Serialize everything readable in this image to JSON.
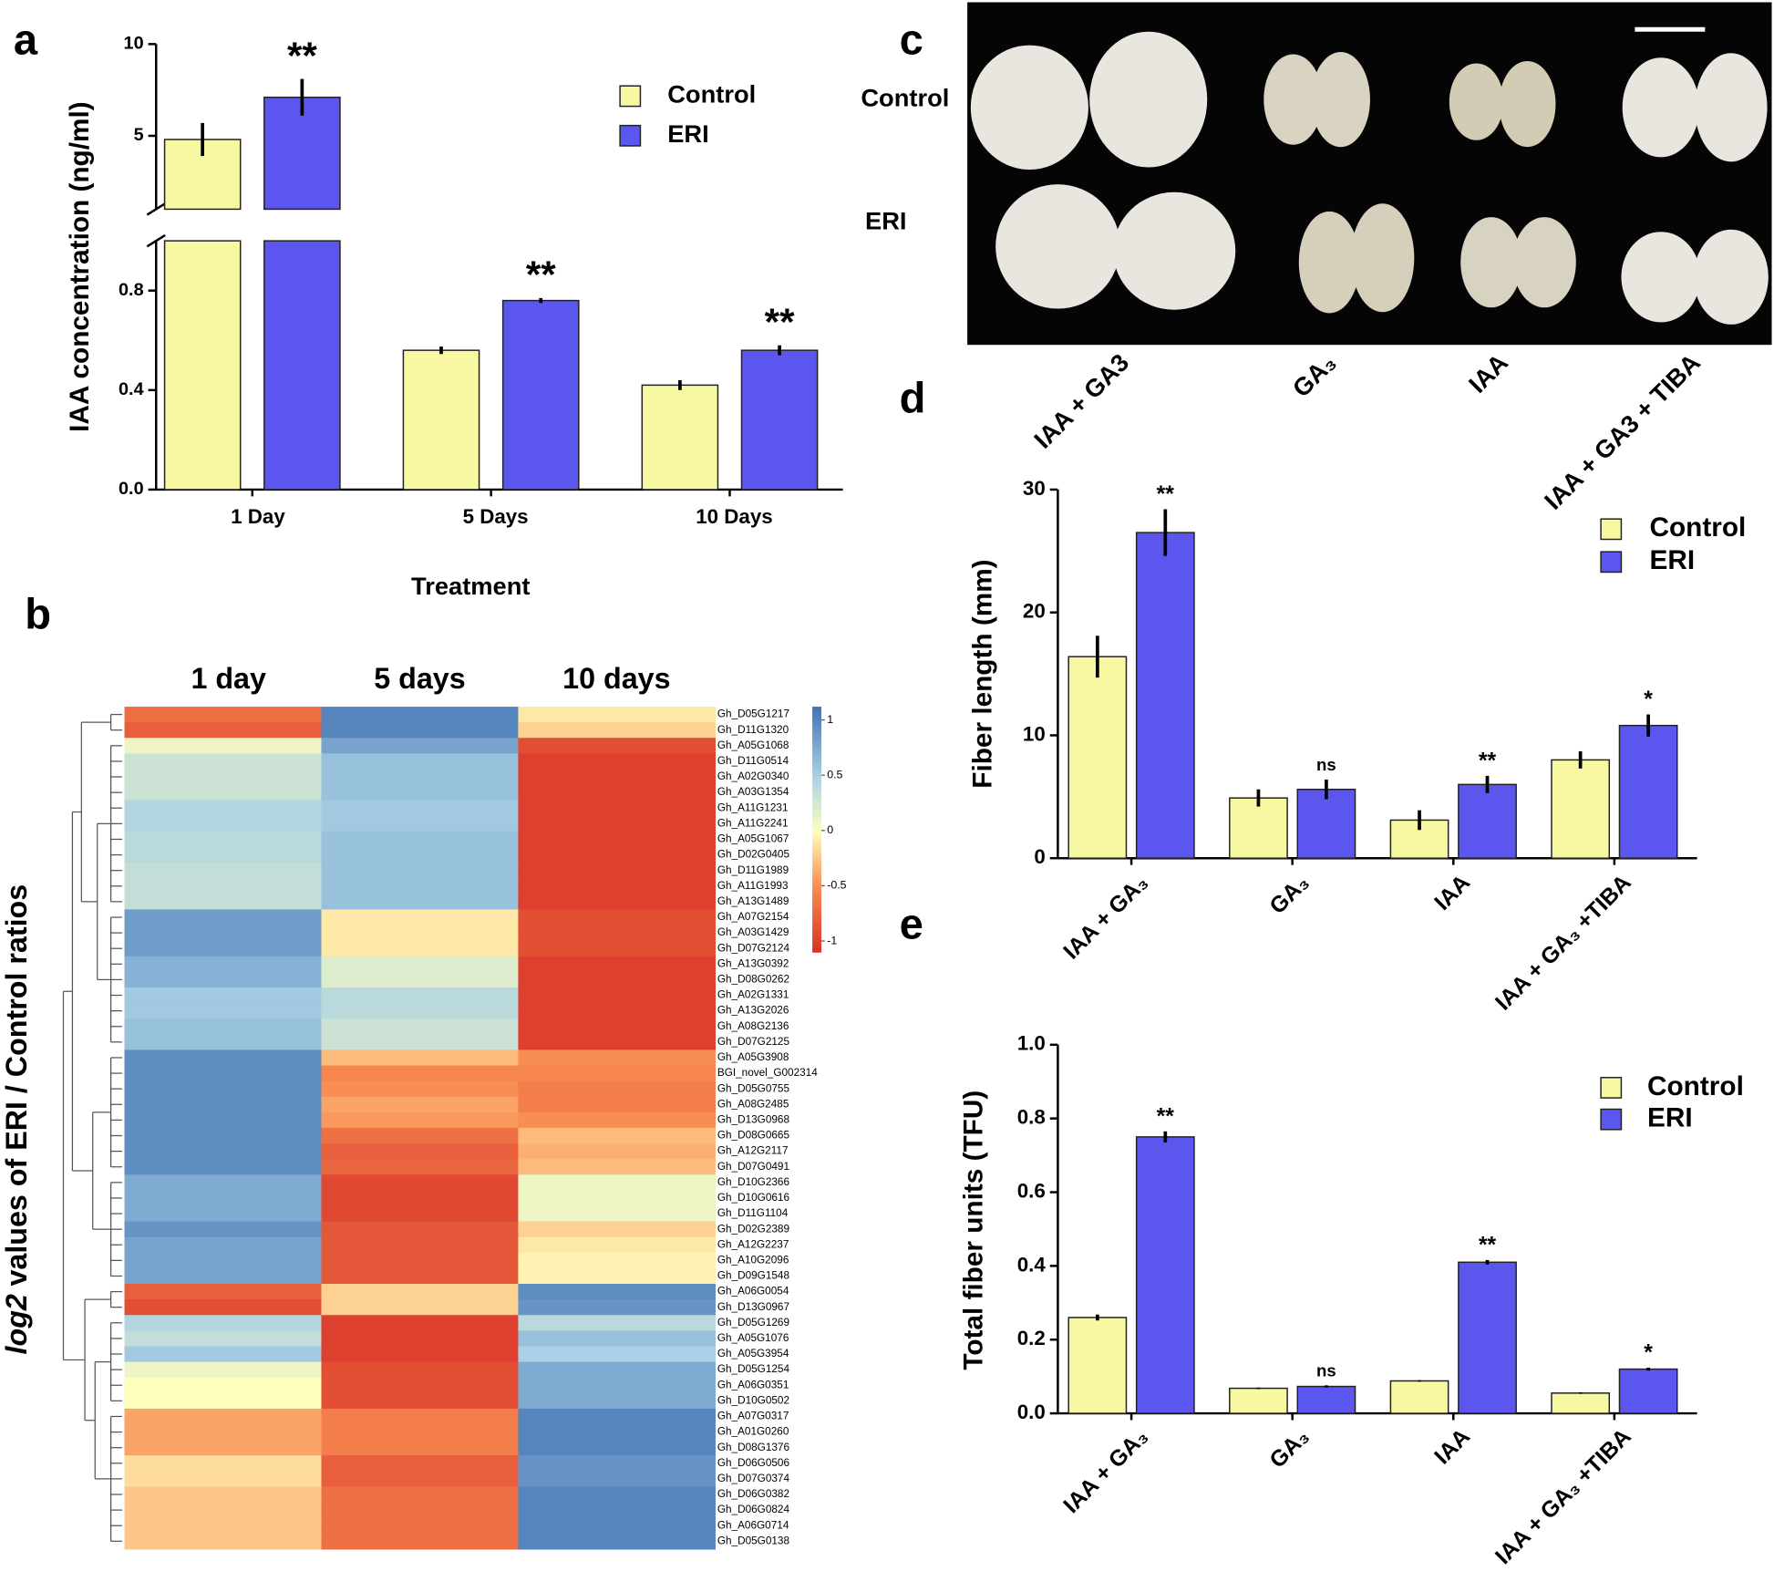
{
  "panel_labels": [
    "a",
    "b",
    "c",
    "d",
    "e"
  ],
  "photo": {
    "rows": [
      "Control",
      "ERI"
    ],
    "columns": [
      "IAA + GA3",
      "GA₃",
      "IAA",
      "IAA + GA3 + TIBA"
    ]
  },
  "chart_data": [
    {
      "type": "bar",
      "ylabel": "IAA concentration (ng/ml)",
      "xlabel": "Treatment",
      "categories": [
        "1 Day",
        "5 Days",
        "10 Days"
      ],
      "ylim": [
        [
          0,
          1
        ],
        [
          1,
          10
        ]
      ],
      "yticks": [
        [
          {
            "value": 0,
            "label": "0.0"
          },
          0.4,
          0.8
        ],
        [
          5,
          10
        ]
      ],
      "series": [
        {
          "name": "Control",
          "color": "#f8f7a2",
          "values": [
            4.8,
            0.56,
            0.42
          ],
          "errors": [
            0.9,
            0.015,
            0.02
          ]
        },
        {
          "name": "ERI",
          "color": "#5b57ee",
          "values": [
            7.1,
            0.76,
            0.56
          ],
          "errors": [
            1.0,
            0.01,
            0.02
          ]
        }
      ],
      "annotations": [
        "**",
        "**",
        "**"
      ]
    },
    {
      "type": "heatmap",
      "ylabel": [
        "log2",
        "values of ERI / Control ratios"
      ],
      "columns": [
        "1 day",
        "5 days",
        "10 days"
      ],
      "zlim": [
        -1.1,
        1.12
      ],
      "zticks": [
        1,
        0.5,
        0,
        -0.5,
        -1
      ],
      "colorscale": [
        [
          -1.1,
          "#d73027"
        ],
        [
          -0.5,
          "#f98e52"
        ],
        [
          0,
          "#fefebd"
        ],
        [
          0.5,
          "#a9d0e4"
        ],
        [
          1.12,
          "#4273b4"
        ]
      ],
      "rows": [
        "Gh_D05G1217",
        "Gh_D11G1320",
        "Gh_A05G1068",
        "Gh_D11G0514",
        "Gh_A02G0340",
        "Gh_A03G1354",
        "Gh_A11G1231",
        "Gh_A11G2241",
        "Gh_A05G1067",
        "Gh_D02G0405",
        "Gh_D11G1989",
        "Gh_A11G1993",
        "Gh_A13G1489",
        "Gh_A07G2154",
        "Gh_A03G1429",
        "Gh_D07G2124",
        "Gh_A13G0392",
        "Gh_D08G0262",
        "Gh_A02G1331",
        "Gh_A13G2026",
        "Gh_A08G2136",
        "Gh_D07G2125",
        "Gh_A05G3908",
        "BGI_novel_G002314",
        "Gh_D05G0755",
        "Gh_A08G2485",
        "Gh_D13G0968",
        "Gh_D08G0665",
        "Gh_A12G2117",
        "Gh_D07G0491",
        "Gh_D10G2366",
        "Gh_D10G0616",
        "Gh_D11G1104",
        "Gh_D02G2389",
        "Gh_A12G2237",
        "Gh_A10G2096",
        "Gh_D09G1548",
        "Gh_A06G0054",
        "Gh_D13G0967",
        "Gh_D05G1269",
        "Gh_A05G1076",
        "Gh_A05G3954",
        "Gh_D05G1254",
        "Gh_A06G0351",
        "Gh_D10G0502",
        "Gh_A07G0317",
        "Gh_A01G0260",
        "Gh_D08G1376",
        "Gh_D06G0506",
        "Gh_D07G0374",
        "Gh_D06G0382",
        "Gh_D06G0824",
        "Gh_A06G0714",
        "Gh_D05G0138"
      ],
      "values": [
        [
          -0.7,
          1.0,
          -0.1
        ],
        [
          -0.8,
          1.0,
          -0.2
        ],
        [
          0.1,
          0.8,
          -0.9
        ],
        [
          0.3,
          0.6,
          -1
        ],
        [
          0.3,
          0.6,
          -1
        ],
        [
          0.3,
          0.6,
          -1
        ],
        [
          0.45,
          0.55,
          -1
        ],
        [
          0.45,
          0.55,
          -1
        ],
        [
          0.4,
          0.6,
          -1
        ],
        [
          0.4,
          0.6,
          -1
        ],
        [
          0.35,
          0.6,
          -1
        ],
        [
          0.35,
          0.6,
          -1
        ],
        [
          0.35,
          0.6,
          -1
        ],
        [
          0.85,
          -0.1,
          -0.9
        ],
        [
          0.85,
          -0.1,
          -0.9
        ],
        [
          0.85,
          -0.1,
          -0.9
        ],
        [
          0.7,
          0.2,
          -1
        ],
        [
          0.7,
          0.2,
          -1
        ],
        [
          0.55,
          0.4,
          -1
        ],
        [
          0.55,
          0.4,
          -1
        ],
        [
          0.6,
          0.3,
          -1
        ],
        [
          0.6,
          0.3,
          -1
        ],
        [
          0.95,
          -0.3,
          -0.5
        ],
        [
          0.95,
          -0.55,
          -0.55
        ],
        [
          0.95,
          -0.5,
          -0.6
        ],
        [
          0.95,
          -0.4,
          -0.6
        ],
        [
          0.95,
          -0.45,
          -0.5
        ],
        [
          0.95,
          -0.7,
          -0.3
        ],
        [
          0.95,
          -0.8,
          -0.35
        ],
        [
          0.95,
          -0.75,
          -0.3
        ],
        [
          0.75,
          -0.95,
          0.1
        ],
        [
          0.75,
          -0.95,
          0.1
        ],
        [
          0.75,
          -0.95,
          0.1
        ],
        [
          0.9,
          -0.85,
          -0.2
        ],
        [
          0.8,
          -0.85,
          -0.1
        ],
        [
          0.8,
          -0.85,
          -0.05
        ],
        [
          0.8,
          -0.85,
          -0.05
        ],
        [
          -0.8,
          -0.2,
          0.95
        ],
        [
          -0.9,
          -0.2,
          0.9
        ],
        [
          0.45,
          -1,
          0.4
        ],
        [
          0.35,
          -1,
          0.6
        ],
        [
          0.55,
          -1,
          0.5
        ],
        [
          0.1,
          -0.9,
          0.75
        ],
        [
          0,
          -0.9,
          0.75
        ],
        [
          0,
          -0.9,
          0.75
        ],
        [
          -0.4,
          -0.6,
          1.0
        ],
        [
          -0.4,
          -0.6,
          1.0
        ],
        [
          -0.4,
          -0.6,
          1.0
        ],
        [
          -0.15,
          -0.8,
          0.9
        ],
        [
          -0.15,
          -0.8,
          0.9
        ],
        [
          -0.25,
          -0.7,
          1.0
        ],
        [
          -0.25,
          -0.7,
          1.0
        ],
        [
          -0.25,
          -0.7,
          1.0
        ],
        [
          -0.25,
          -0.7,
          1.0
        ]
      ]
    },
    {
      "type": "bar",
      "ylabel": "Fiber length (mm)",
      "categories": [
        "IAA + GA₃",
        "GA₃",
        "IAA",
        "IAA + GA₃ +TIBA"
      ],
      "ylim": [
        0,
        30
      ],
      "yticks": [
        0,
        10,
        20,
        30
      ],
      "series": [
        {
          "name": "Control",
          "color": "#f8f7a2",
          "values": [
            16.4,
            4.9,
            3.1,
            8.0
          ],
          "errors": [
            1.7,
            0.7,
            0.8,
            0.7
          ]
        },
        {
          "name": "ERI",
          "color": "#5b57ee",
          "values": [
            26.5,
            5.6,
            6.0,
            10.8
          ],
          "errors": [
            1.9,
            0.8,
            0.7,
            0.9
          ]
        }
      ],
      "annotations": [
        "**",
        "ns",
        "**",
        "*"
      ]
    },
    {
      "type": "bar",
      "ylabel": "Total fiber units (TFU)",
      "categories": [
        "IAA + GA₃",
        "GA₃",
        "IAA",
        "IAA + GA₃ +TIBA"
      ],
      "ylim": [
        0,
        1
      ],
      "yticks": [
        {
          "value": 0,
          "label": "0.0"
        },
        0.2,
        0.4,
        0.6,
        0.8,
        {
          "value": 1,
          "label": "1.0"
        }
      ],
      "series": [
        {
          "name": "Control",
          "color": "#f8f7a2",
          "values": [
            0.26,
            0.068,
            0.088,
            0.055
          ],
          "errors": [
            0.008,
            0.002,
            0.002,
            0.002
          ]
        },
        {
          "name": "ERI",
          "color": "#5b57ee",
          "values": [
            0.75,
            0.073,
            0.41,
            0.12
          ],
          "errors": [
            0.015,
            0.003,
            0.006,
            0.004
          ]
        }
      ],
      "annotations": [
        "**",
        "ns",
        "**",
        "*"
      ]
    }
  ]
}
